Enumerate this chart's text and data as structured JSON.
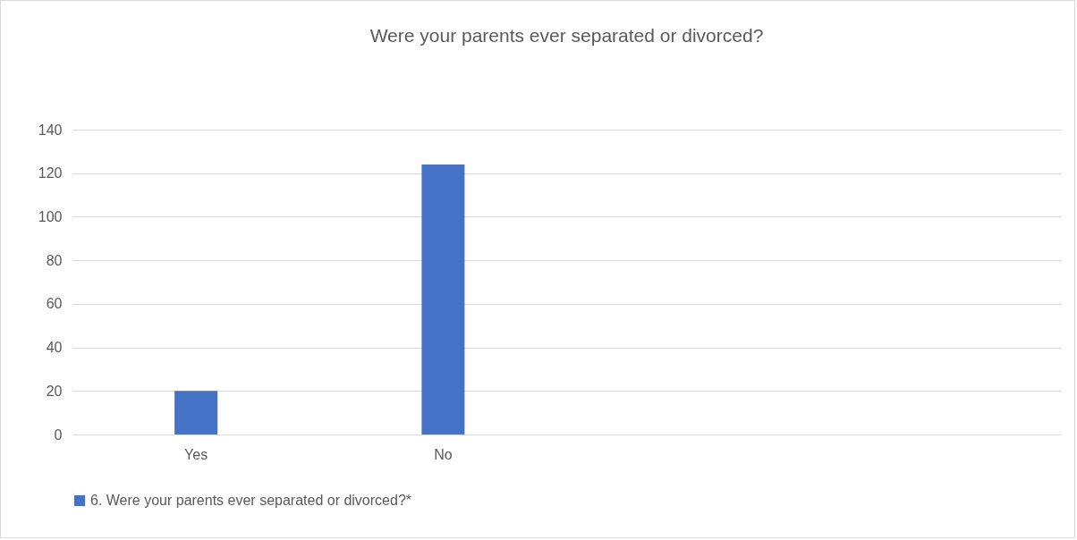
{
  "chart_data": {
    "type": "bar",
    "title": "Were your parents ever separated or divorced?",
    "categories": [
      "Yes",
      "No",
      null,
      null
    ],
    "series": [
      {
        "name": "6. Were your parents ever separated or divorced?*",
        "color": "#4472c4",
        "values": [
          20,
          124,
          null,
          null
        ]
      }
    ],
    "ylim": [
      0,
      140
    ],
    "yticks": [
      0,
      20,
      40,
      60,
      80,
      100,
      120,
      140
    ],
    "grid": "y",
    "legend": "bottom"
  }
}
